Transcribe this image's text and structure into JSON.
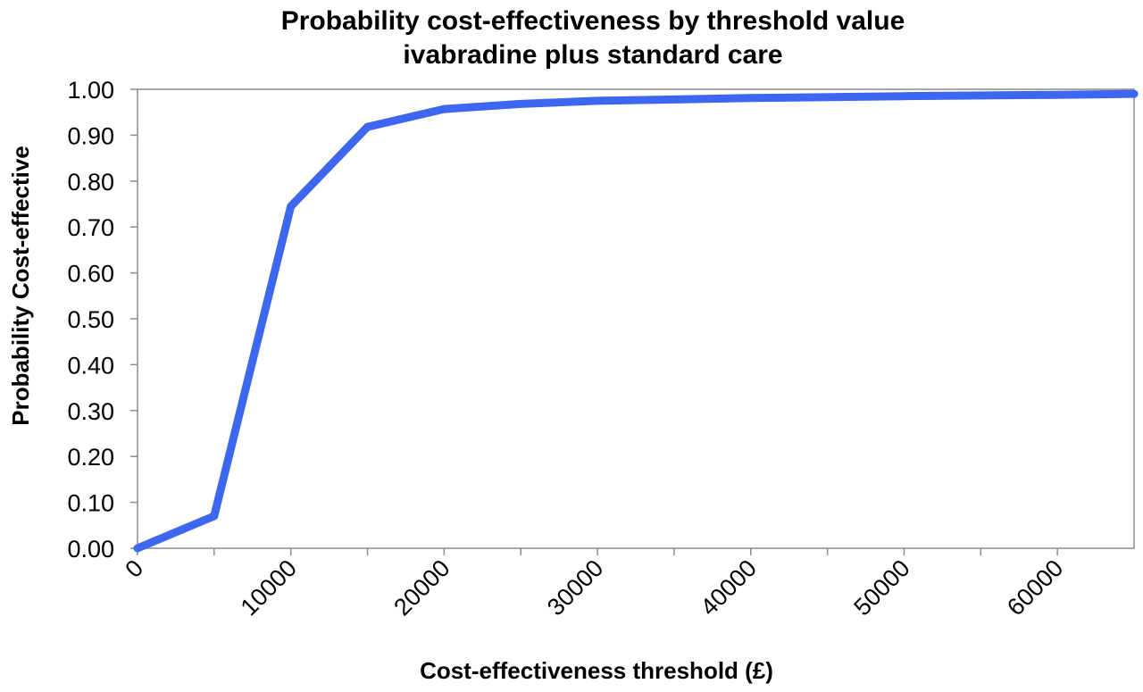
{
  "chart_data": {
    "type": "line",
    "title": [
      "Probability cost-effectiveness by threshold value",
      "ivabradine plus standard care"
    ],
    "xlabel": "Cost-effectiveness  threshold (£)",
    "ylabel": "Probability  Cost-effective",
    "xlim": [
      0,
      65000
    ],
    "ylim": [
      0,
      1
    ],
    "x_ticks": [
      0,
      10000,
      20000,
      30000,
      40000,
      50000,
      60000
    ],
    "x_tick_labels": [
      "0",
      "10000",
      "20000",
      "30000",
      "40000",
      "50000",
      "60000"
    ],
    "x_minor_ticks": [
      5000,
      15000,
      25000,
      35000,
      45000,
      55000
    ],
    "y_ticks": [
      0,
      0.1,
      0.2,
      0.3,
      0.4,
      0.5,
      0.6,
      0.7,
      0.8,
      0.9,
      1.0
    ],
    "y_tick_labels": [
      "0.00",
      "0.10",
      "0.20",
      "0.30",
      "0.40",
      "0.50",
      "0.60",
      "0.70",
      "0.80",
      "0.90",
      "1.00"
    ],
    "grid": false,
    "legend": "none",
    "series": [
      {
        "color": "#3d67f0",
        "x": [
          0,
          5000,
          10000,
          15000,
          20000,
          25000,
          30000,
          40000,
          50000,
          60000,
          65000
        ],
        "y": [
          0.0,
          0.07,
          0.745,
          0.918,
          0.957,
          0.968,
          0.975,
          0.981,
          0.985,
          0.988,
          0.99
        ]
      }
    ]
  }
}
